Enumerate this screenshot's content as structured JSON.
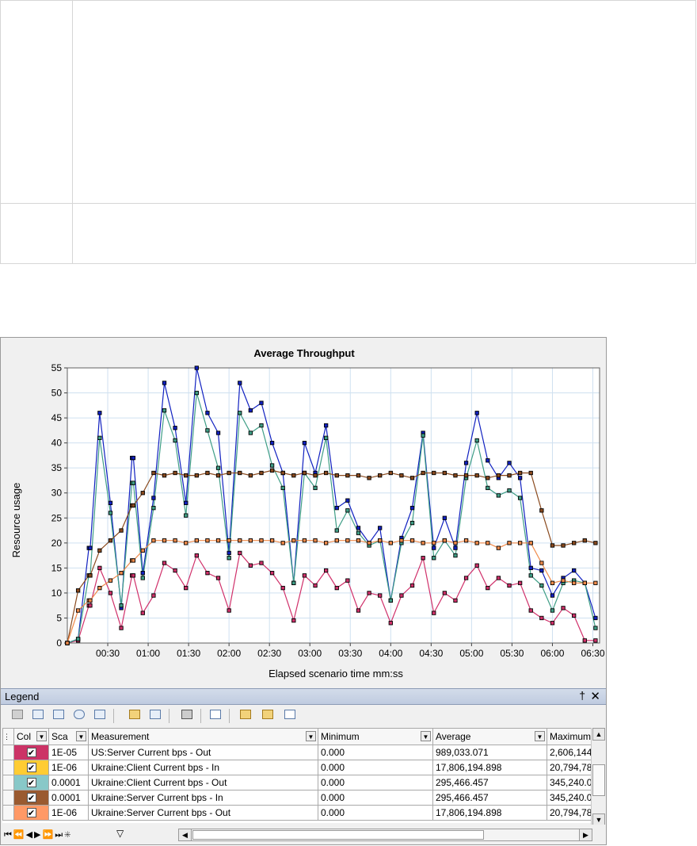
{
  "chart_data": {
    "type": "line",
    "title": "Average Throughput",
    "xlabel": "Elapsed scenario time mm:ss",
    "ylabel": "Resource usage",
    "xlim": [
      0,
      395
    ],
    "ylim": [
      0,
      55
    ],
    "x_ticks": [
      {
        "value": 30,
        "label": "00:30"
      },
      {
        "value": 60,
        "label": "01:00"
      },
      {
        "value": 90,
        "label": "01:30"
      },
      {
        "value": 120,
        "label": "02:00"
      },
      {
        "value": 150,
        "label": "02:30"
      },
      {
        "value": 180,
        "label": "03:00"
      },
      {
        "value": 210,
        "label": "03:30"
      },
      {
        "value": 240,
        "label": "04:00"
      },
      {
        "value": 270,
        "label": "04:30"
      },
      {
        "value": 300,
        "label": "05:00"
      },
      {
        "value": 330,
        "label": "05:30"
      },
      {
        "value": 360,
        "label": "06:00"
      },
      {
        "value": 390,
        "label": "06:30"
      }
    ],
    "y_ticks": [
      0,
      5,
      10,
      15,
      20,
      25,
      30,
      35,
      40,
      45,
      50,
      55
    ],
    "grid": true,
    "x": [
      0,
      8,
      16,
      17,
      24,
      32,
      40,
      48,
      49,
      56,
      64,
      72,
      80,
      88,
      96,
      104,
      112,
      120,
      128,
      136,
      144,
      152,
      160,
      168,
      176,
      184,
      192,
      200,
      208,
      216,
      224,
      232,
      240,
      248,
      256,
      264,
      272,
      280,
      288,
      296,
      304,
      312,
      320,
      328,
      336,
      344,
      352,
      360,
      368,
      376,
      384,
      392
    ],
    "series": [
      {
        "name": "US:Server Current bps - Out",
        "color": "#d0306a",
        "values": [
          0,
          0.5,
          7.5,
          7.5,
          15,
          10,
          3,
          13.5,
          13.5,
          6,
          9.5,
          16,
          14.5,
          11,
          17.5,
          14,
          13,
          6.5,
          18,
          15.5,
          16,
          14,
          11,
          4.5,
          13.5,
          11.5,
          14.5,
          11,
          12.5,
          6.5,
          10,
          9.5,
          4,
          9.5,
          11.5,
          17,
          6,
          10,
          8.5,
          13,
          15.5,
          11,
          13,
          11.5,
          12,
          6.5,
          5,
          4,
          7,
          5.5,
          0.5,
          0.5
        ]
      },
      {
        "name": "Ukraine:Client Current bps - In",
        "color": "#1020c0",
        "values": [
          0,
          0.8,
          19,
          19,
          46,
          28,
          7,
          37,
          37,
          14,
          29,
          52,
          43,
          28,
          55,
          46,
          42,
          18,
          52,
          46.5,
          48,
          40,
          34,
          12,
          40,
          34,
          43.5,
          27,
          28.5,
          23,
          20,
          23,
          8.5,
          21,
          27,
          42,
          19,
          25,
          19,
          36,
          46,
          36.5,
          33,
          36,
          33,
          15,
          14.5,
          9.5,
          13,
          14.5,
          12,
          5
        ]
      },
      {
        "name": "Ukraine:Client Current bps - Out",
        "color": "#3f9e86",
        "values": [
          0,
          0.8,
          13.5,
          13.5,
          41,
          26,
          7.5,
          32,
          32,
          13,
          27,
          46.5,
          40.5,
          25.5,
          50,
          42.5,
          35,
          17,
          46,
          42,
          43.5,
          35.5,
          31,
          12,
          34,
          31,
          41,
          22.5,
          26.5,
          22,
          19.5,
          20.5,
          8.5,
          20,
          24,
          41.5,
          17,
          20.5,
          17.5,
          33,
          40.5,
          31,
          29.5,
          30.5,
          29,
          13.5,
          11.5,
          6.5,
          12,
          12.5,
          12,
          3
        ]
      },
      {
        "name": "Ukraine:Server Current bps - In",
        "color": "#8a4a1e",
        "values": [
          0,
          10.5,
          13.5,
          13.5,
          18.5,
          20.5,
          22.5,
          27.5,
          27.5,
          30,
          34,
          33.5,
          34,
          33.5,
          33.5,
          34,
          33.5,
          34,
          34,
          33.5,
          34,
          34.5,
          34,
          33.5,
          34,
          33.5,
          34,
          33.5,
          33.5,
          33.5,
          33,
          33.5,
          34,
          33.5,
          33,
          34,
          34,
          34,
          33.5,
          33.5,
          33.5,
          33,
          33.5,
          33.5,
          34,
          34,
          26.5,
          19.5,
          19.5,
          20,
          20.5,
          20
        ]
      },
      {
        "name": "Ukraine:Server Current bps - Out",
        "color": "#f08a4a",
        "values": [
          0,
          6.5,
          8.5,
          8.5,
          11,
          12.5,
          14,
          16.5,
          16.5,
          18.5,
          20.5,
          20.5,
          20.5,
          20,
          20.5,
          20.5,
          20.5,
          20.5,
          20.5,
          20.5,
          20.5,
          20.5,
          20,
          20.5,
          20.5,
          20.5,
          20,
          20.5,
          20.5,
          20.5,
          20,
          20.5,
          20,
          20.5,
          20.5,
          20,
          20,
          20.5,
          20,
          20.5,
          20,
          20,
          19,
          20,
          20,
          20,
          16,
          12,
          12.5,
          12,
          12,
          12
        ]
      }
    ]
  },
  "legend": {
    "title": "Legend",
    "pin_glyph": "†",
    "close_glyph": "✕",
    "columns": [
      "Col",
      "Sca",
      "Measurement",
      "Minimum",
      "Average",
      "Maximum"
    ],
    "rows": [
      {
        "color": "#cc3366",
        "checked": "✔",
        "scale": "1E-05",
        "measurement": "US:Server Current bps - Out",
        "minimum": "0.000",
        "average": "989,033.071",
        "maximum": "2,606,144"
      },
      {
        "color": "#ffcc33",
        "checked": "✔",
        "scale": "1E-06",
        "measurement": "Ukraine:Client Current bps - In",
        "minimum": "0.000",
        "average": "17,806,194.898",
        "maximum": "20,794,78"
      },
      {
        "color": "#88c8c8",
        "checked": "✔",
        "scale": "0.0001",
        "measurement": "Ukraine:Client Current bps - Out",
        "minimum": "0.000",
        "average": "295,466.457",
        "maximum": "345,240.0"
      },
      {
        "color": "#9a5a30",
        "checked": "✔",
        "scale": "0.0001",
        "measurement": "Ukraine:Server Current bps - In",
        "minimum": "0.000",
        "average": "295,466.457",
        "maximum": "345,240.0"
      },
      {
        "color": "#ff9966",
        "checked": "✔",
        "scale": "1E-06",
        "measurement": "Ukraine:Server Current bps - Out",
        "minimum": "0.000",
        "average": "17,806,194.898",
        "maximum": "20,794,78"
      }
    ]
  },
  "nav_glyphs": "⏮⏪◀▶⏩⏭✳"
}
